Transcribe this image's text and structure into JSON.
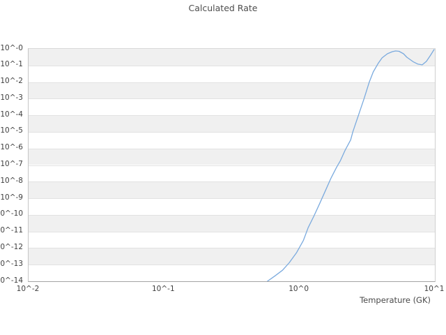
{
  "chart_data": {
    "type": "line",
    "title": "Calculated Rate",
    "xlabel": "Temperature (GK)",
    "ylabel": "",
    "x_scale": "log",
    "y_scale": "log",
    "xlim": [
      0.01,
      10
    ],
    "ylim": [
      1e-14,
      1
    ],
    "xticks": [
      "10^-2",
      "10^-1",
      "10^0",
      "10^1"
    ],
    "yticks": [
      "10^-0",
      "10^-1",
      "10^-2",
      "10^-3",
      "10^-4",
      "10^-5",
      "10^-6",
      "10^-7",
      "10^-8",
      "10^-9",
      "10^-10",
      "10^-11",
      "10^-12",
      "10^-13",
      "10^-14"
    ],
    "grid": "horizontal-decade-lines",
    "bands": "alternating-decade-shading",
    "legend": "none",
    "line_color": "#7aaade",
    "band_color": "#f0f0f0",
    "series": [
      {
        "name": "Calculated Rate",
        "points": [
          [
            0.58,
            1e-14
          ],
          [
            0.66,
            2.1e-14
          ],
          [
            0.75,
            4.6e-14
          ],
          [
            0.84,
            1.3e-13
          ],
          [
            0.95,
            5.1e-13
          ],
          [
            1.07,
            2.9e-12
          ],
          [
            1.16,
            1.7e-11
          ],
          [
            1.28,
            8.5e-11
          ],
          [
            1.41,
            4.8e-10
          ],
          [
            1.56,
            3e-09
          ],
          [
            1.71,
            1.6e-08
          ],
          [
            1.88,
            7.3e-08
          ],
          [
            2.01,
            1.9e-07
          ],
          [
            2.18,
            8.1e-07
          ],
          [
            2.39,
            3.3e-06
          ],
          [
            2.48,
            1e-05
          ],
          [
            2.73,
            0.0001
          ],
          [
            3.0,
            0.001
          ],
          [
            3.28,
            0.01
          ],
          [
            3.51,
            0.041
          ],
          [
            3.81,
            0.132
          ],
          [
            4.08,
            0.286
          ],
          [
            4.46,
            0.51
          ],
          [
            4.86,
            0.68
          ],
          [
            5.13,
            0.75
          ],
          [
            5.44,
            0.713
          ],
          [
            5.87,
            0.51
          ],
          [
            6.21,
            0.314
          ],
          [
            6.91,
            0.168
          ],
          [
            7.51,
            0.12
          ],
          [
            8.07,
            0.109
          ],
          [
            8.66,
            0.176
          ],
          [
            9.3,
            0.419
          ],
          [
            9.87,
            0.908
          ]
        ]
      }
    ]
  }
}
